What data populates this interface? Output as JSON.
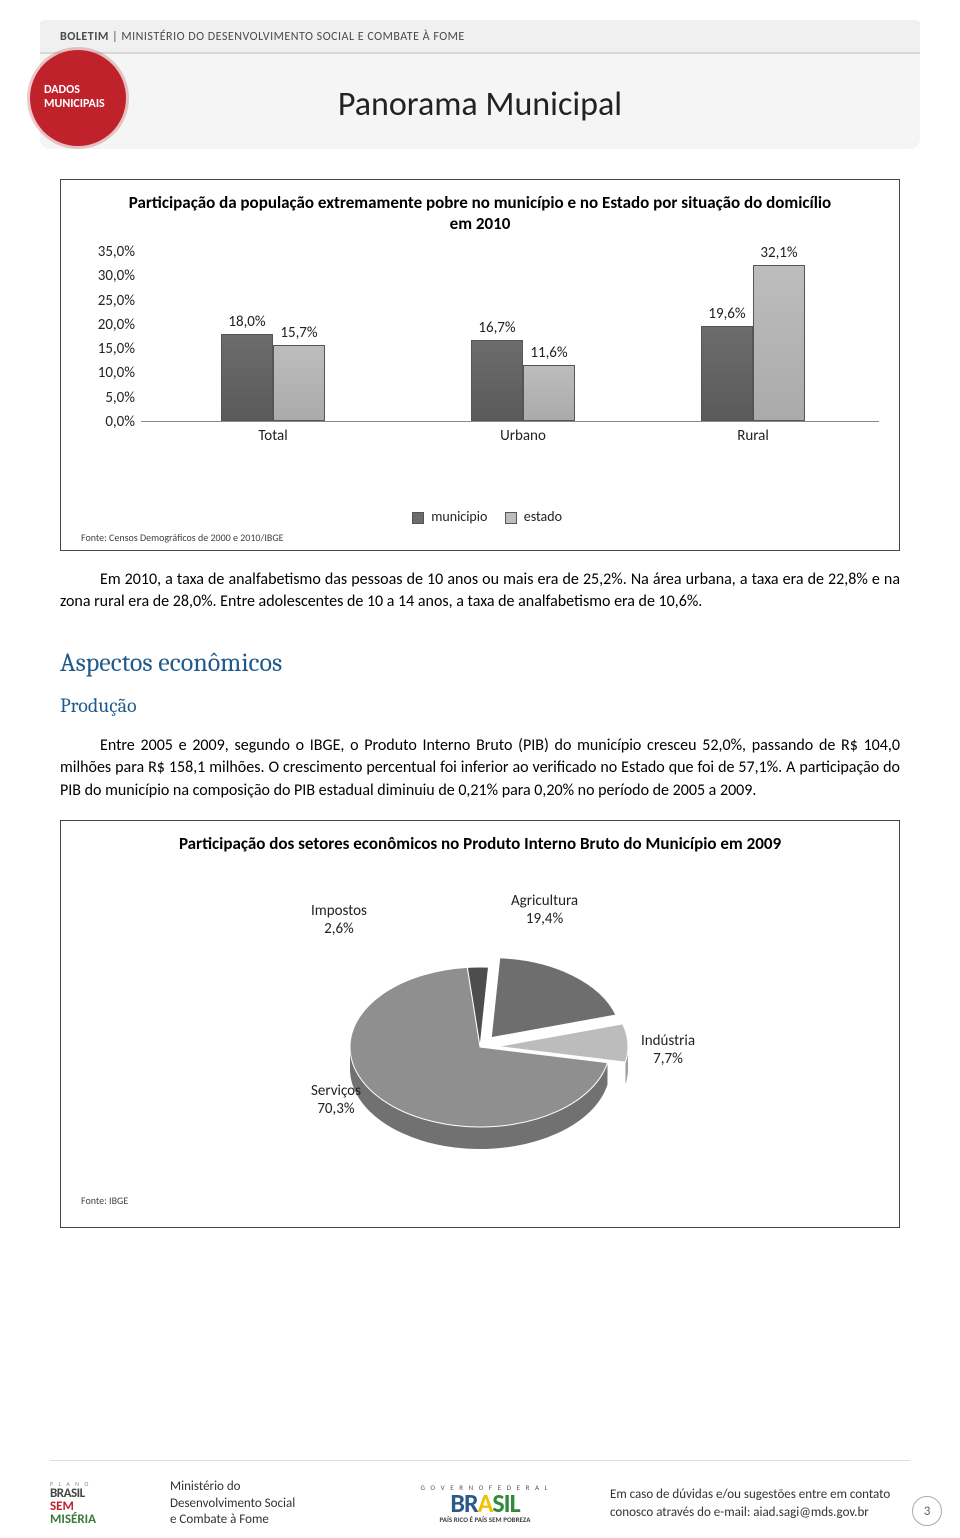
{
  "header": {
    "boletim_bold": "BOLETIM",
    "boletim_rest": " | MINISTÉRIO DO DESENVOLVIMENTO SOCIAL E COMBATE À FOME",
    "badge_l1": "DADOS",
    "badge_l2": "MUNICIPAIS",
    "title": "Panorama Municipal"
  },
  "bar_chart": {
    "title": "Participação da população extremamente pobre no município e no Estado por situação do domicílio em 2010",
    "source": "Fonte: Censos Demográficos de 2000 e 2010/IBGE",
    "yticks": [
      "0,0%",
      "5,0%",
      "10,0%",
      "15,0%",
      "20,0%",
      "25,0%",
      "30,0%",
      "35,0%"
    ],
    "ymax": 35,
    "colors": {
      "municipio": "#6c6c6c",
      "estado": "#bdbdbd",
      "border": "#555555"
    },
    "categories": [
      "Total",
      "Urbano",
      "Rural"
    ],
    "s1_name": "municipio",
    "s2_name": "estado",
    "groups": [
      {
        "cat": "Total",
        "v1": 18.0,
        "l1": "18,0%",
        "v2": 15.7,
        "l2": "15,7%"
      },
      {
        "cat": "Urbano",
        "v1": 16.7,
        "l1": "16,7%",
        "v2": 11.6,
        "l2": "11,6%"
      },
      {
        "cat": "Rural",
        "v1": 19.6,
        "l1": "19,6%",
        "v2": 32.1,
        "l2": "32,1%"
      }
    ]
  },
  "para1": "Em 2010, a taxa de analfabetismo das pessoas de 10 anos ou mais era de 25,2%. Na área urbana, a taxa era de 22,8% e na zona rural era de 28,0%. Entre adolescentes de 10 a 14 anos, a taxa de analfabetismo era de 10,6%.",
  "section_h2": "Aspectos econômicos",
  "section_h3": "Produção",
  "para2": "Entre 2005 e 2009, segundo o IBGE, o Produto Interno Bruto (PIB) do município cresceu 52,0%, passando de R$ 104,0 milhões para R$ 158,1 milhões. O crescimento percentual foi inferior ao verificado no Estado que foi de 57,1%. A participação do PIB do município na composição do PIB estadual diminuiu de 0,21% para 0,20% no período de 2005 a 2009.",
  "pie_chart": {
    "title": "Participação dos setores econômicos no Produto Interno Bruto do Município em 2009",
    "source": "Fonte: IBGE",
    "slices": [
      {
        "name": "Serviços",
        "value": 70.3,
        "label": "Serviços\n70,3%",
        "color": "#8f8f8f"
      },
      {
        "name": "Impostos",
        "value": 2.6,
        "label": "Impostos\n2,6%",
        "color": "#4d4d4d"
      },
      {
        "name": "Agricultura",
        "value": 19.4,
        "label": "Agricultura\n19,4%",
        "color": "#6e6e6e",
        "exploded": true
      },
      {
        "name": "Indústria",
        "value": 7.7,
        "label": "Indústria\n7,7%",
        "color": "#bcbcbc",
        "exploded": true
      }
    ]
  },
  "footer": {
    "bsm_plano": "P L A N O",
    "bsm1": "BRASIL",
    "bsm2": "SEM",
    "bsm3": "MISÉRIA",
    "ministry": "Ministério do\nDesenvolvimento Social\ne Combate à Fome",
    "gov_fed": "G O V E R N O   F E D E R A L",
    "pais_tag": "PAÍS RICO É PAÍS SEM POBREZA",
    "contact": "Em caso de dúvidas e/ou sugestões entre em contato conosco através do e-mail: aiad.sagi@mds.gov.br"
  },
  "page_number": "3"
}
